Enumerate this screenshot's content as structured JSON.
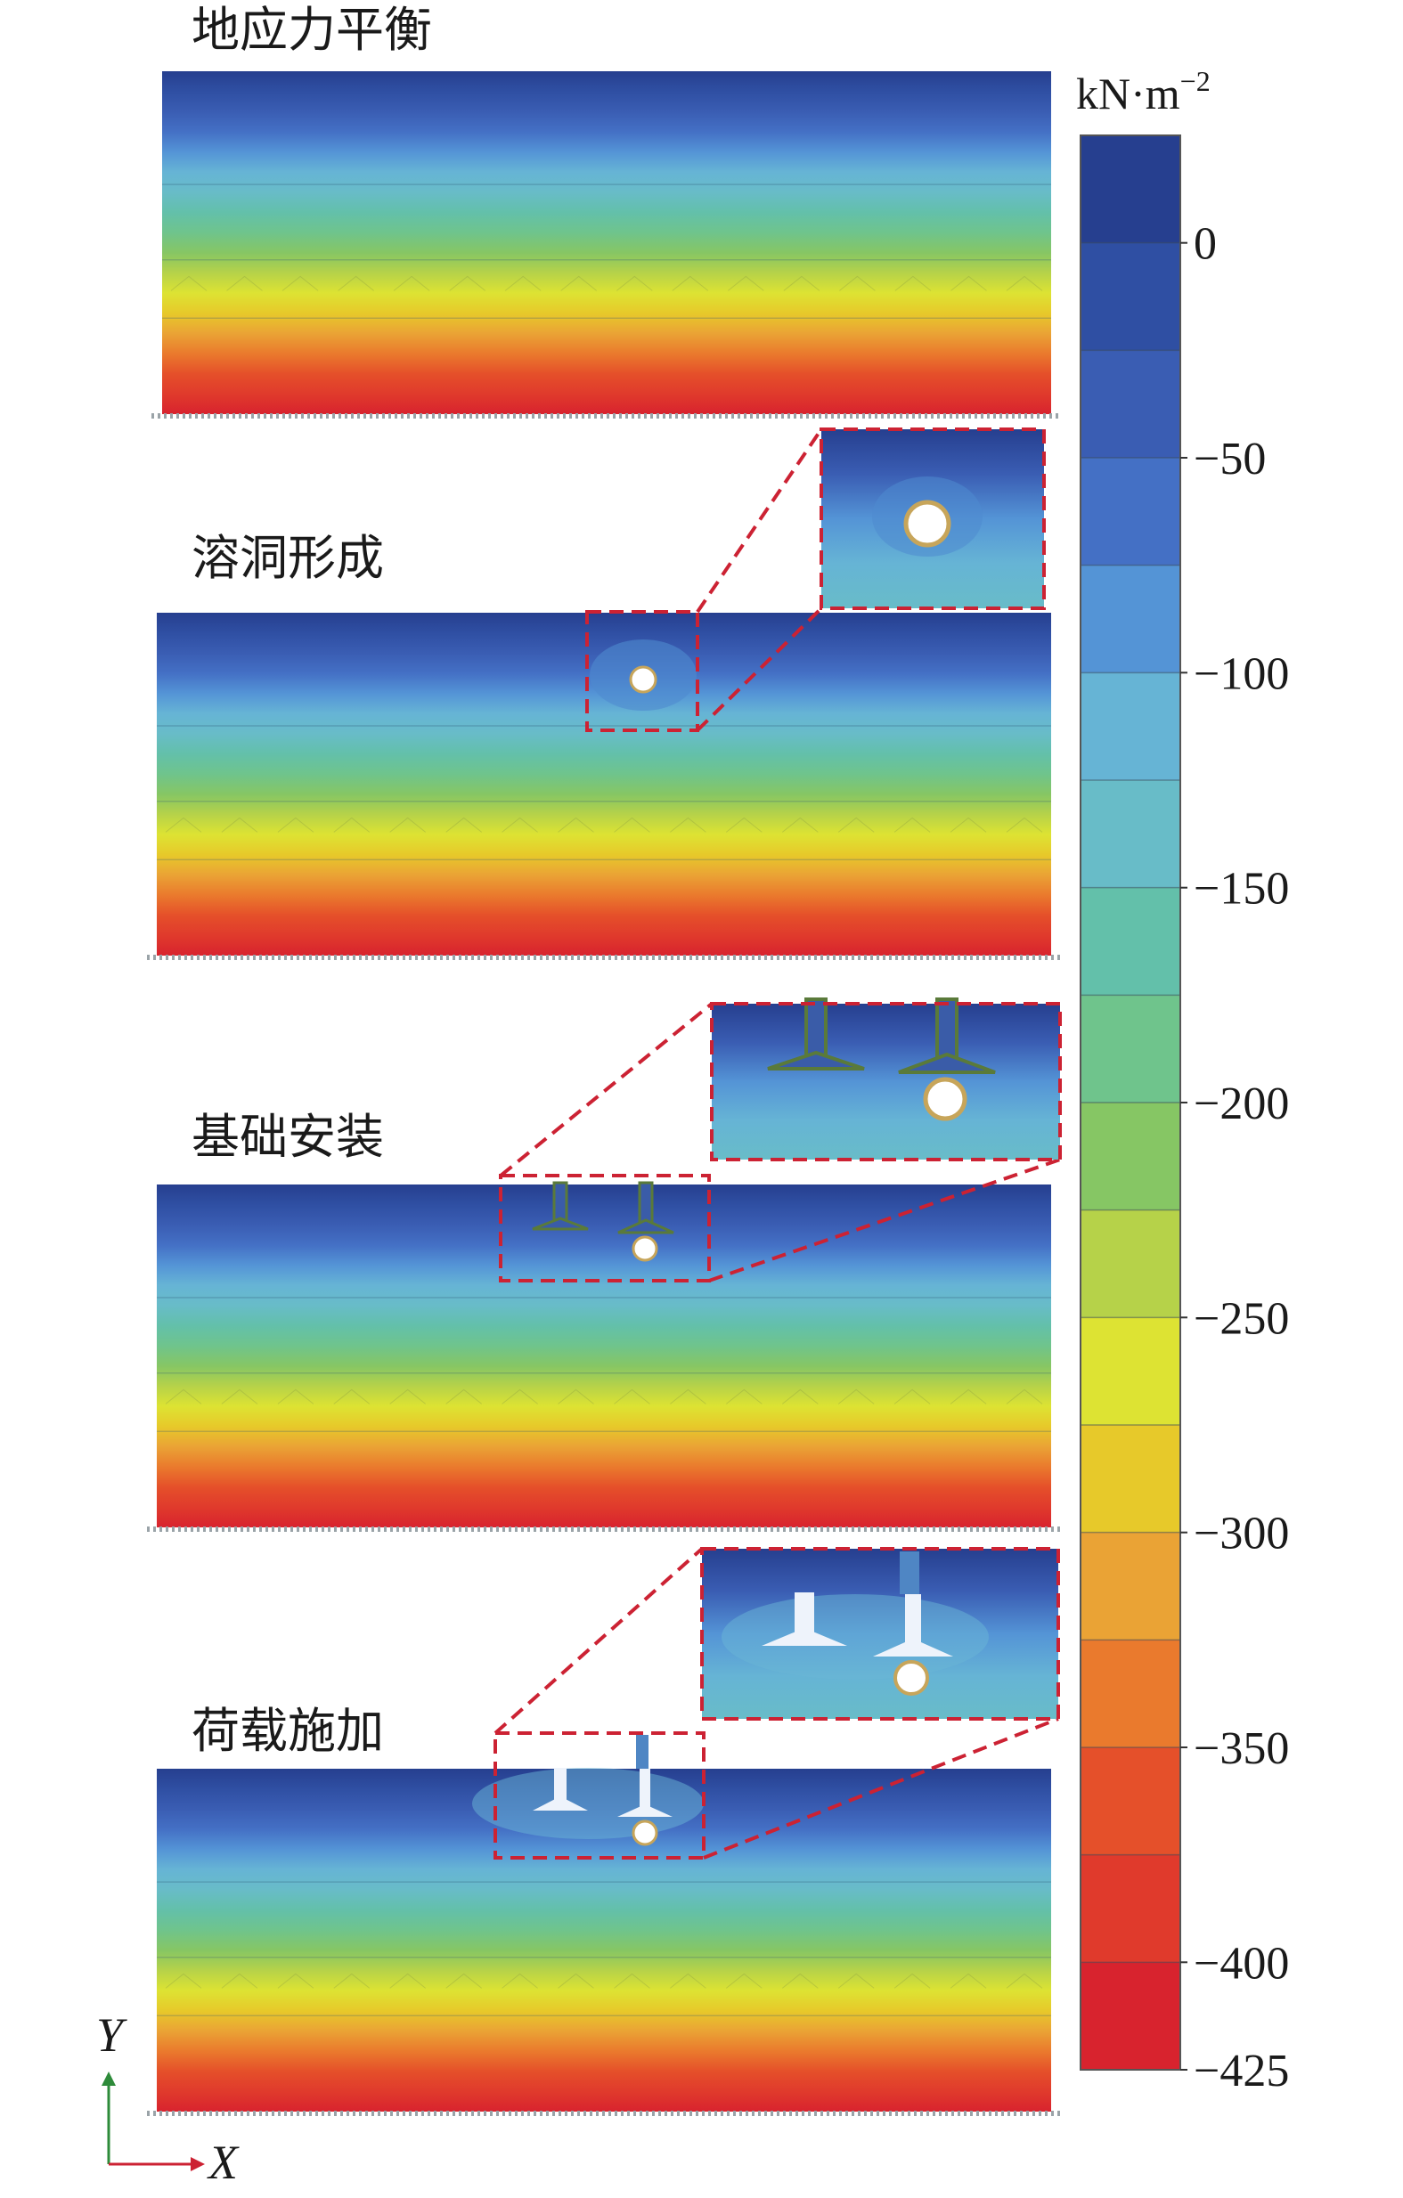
{
  "panels": [
    {
      "title": "地应力平衡",
      "cavity": false,
      "foundations": "none"
    },
    {
      "title": "溶洞形成",
      "cavity": true,
      "foundations": "none"
    },
    {
      "title": "基础安装",
      "cavity": true,
      "foundations": "installed"
    },
    {
      "title": "荷载施加",
      "cavity": true,
      "foundations": "loaded"
    }
  ],
  "colorbar": {
    "unit": "kN·m",
    "unit_exponent": "−2",
    "range": [
      -425,
      25
    ],
    "ticks": [
      {
        "value": 0,
        "label": "0"
      },
      {
        "value": -50,
        "label": "−50"
      },
      {
        "value": -100,
        "label": "−100"
      },
      {
        "value": -150,
        "label": "−150"
      },
      {
        "value": -200,
        "label": "−200"
      },
      {
        "value": -250,
        "label": "−250"
      },
      {
        "value": -300,
        "label": "−300"
      },
      {
        "value": -350,
        "label": "−350"
      },
      {
        "value": -400,
        "label": "−400"
      },
      {
        "value": -425,
        "label": "−425"
      }
    ],
    "colors": [
      "#263f8f",
      "#2f4fa3",
      "#3a5db3",
      "#4470c5",
      "#5494d6",
      "#66b4d5",
      "#68bcc8",
      "#63c0aa",
      "#6fc48c",
      "#86c664",
      "#b6d249",
      "#dde333",
      "#e7c92a",
      "#eaa335",
      "#ea7a2d",
      "#e5502a",
      "#e03a2c",
      "#d8232e"
    ]
  },
  "axes": {
    "x_label": "X",
    "y_label": "Y"
  },
  "colors": {
    "zoom_box": "#cc2233",
    "cavity": "#ffffff",
    "foundation_outline": "#5a7a3a",
    "foundation_loaded": "#eef3fb"
  }
}
